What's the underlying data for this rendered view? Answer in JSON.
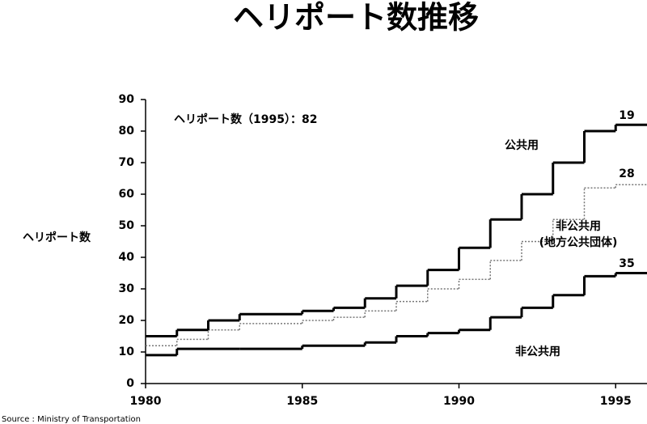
{
  "chart_data": {
    "type": "stacked-step",
    "title": "ヘリポート数推移",
    "ylabel": "ヘリポート数",
    "annotation": "ヘリポート数（1995）：82",
    "source": "Source : Ministry of Transportation",
    "x": [
      1980,
      1981,
      1982,
      1983,
      1984,
      1985,
      1986,
      1987,
      1988,
      1989,
      1990,
      1991,
      1992,
      1993,
      1994,
      1995
    ],
    "xlim": [
      1980,
      1996
    ],
    "xticks": [
      1980,
      1985,
      1990,
      1995
    ],
    "ylim": [
      0,
      90
    ],
    "yticks": [
      0,
      10,
      20,
      30,
      40,
      50,
      60,
      70,
      80,
      90
    ],
    "series": [
      {
        "name": "非公共用",
        "color": "#000000",
        "dash": false,
        "values": [
          9,
          11,
          11,
          11,
          11,
          12,
          12,
          13,
          15,
          16,
          17,
          21,
          24,
          28,
          34,
          35
        ]
      },
      {
        "name": "非公共用\n(地方公共団体)",
        "color": "#777777",
        "dash": true,
        "values": [
          3,
          3,
          6,
          8,
          8,
          8,
          9,
          10,
          11,
          14,
          16,
          18,
          21,
          24,
          28,
          28
        ]
      },
      {
        "name": "公共用",
        "color": "#000000",
        "dash": false,
        "values": [
          3,
          3,
          3,
          3,
          3,
          3,
          3,
          4,
          5,
          6,
          10,
          13,
          15,
          18,
          18,
          19
        ]
      }
    ]
  }
}
